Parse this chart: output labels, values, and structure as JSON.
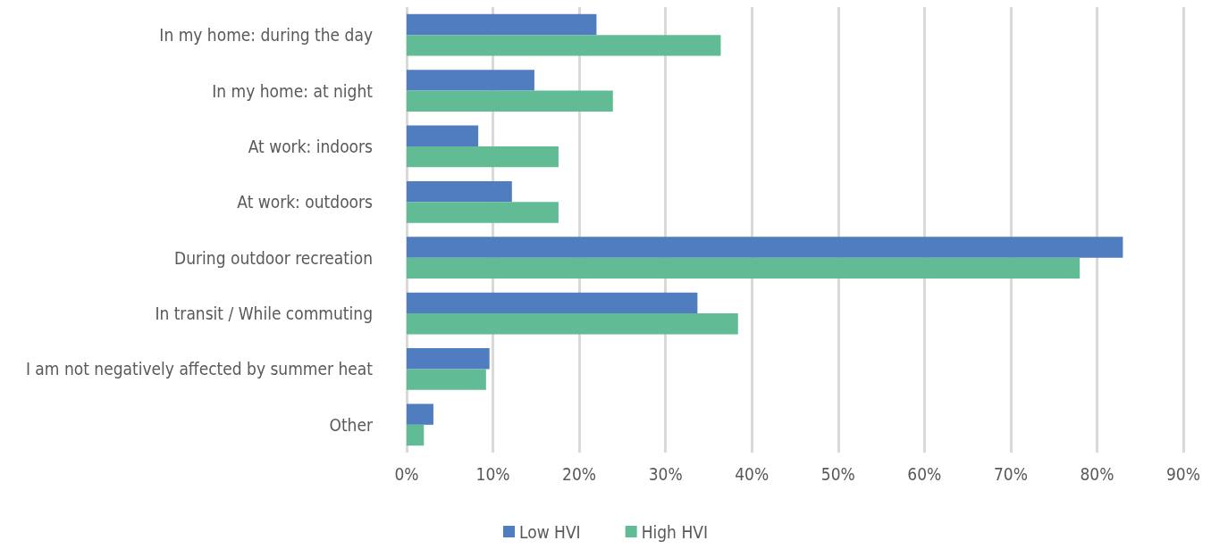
{
  "chart_data": {
    "type": "bar",
    "orientation": "horizontal",
    "categories": [
      "In my home: during the day",
      "In my home: at night",
      "At work: indoors",
      "At work: outdoors",
      "During outdoor recreation",
      "In transit / While commuting",
      "I am not negatively affected by summer heat",
      "Other"
    ],
    "series": [
      {
        "name": "Low HVI",
        "color": "#4f7dc0",
        "values": [
          22.0,
          14.8,
          8.3,
          12.2,
          83.0,
          33.7,
          9.6,
          3.1
        ]
      },
      {
        "name": "High HVI",
        "color": "#61bc96",
        "values": [
          36.4,
          23.9,
          17.6,
          17.6,
          78.0,
          38.4,
          9.2,
          2.0
        ]
      }
    ],
    "xlim": [
      0,
      90
    ],
    "xticks": [
      {
        "value": 0,
        "label": "0%"
      },
      {
        "value": 10,
        "label": "10%"
      },
      {
        "value": 20,
        "label": "20%"
      },
      {
        "value": 30,
        "label": "30%"
      },
      {
        "value": 40,
        "label": "40%"
      },
      {
        "value": 50,
        "label": "50%"
      },
      {
        "value": 60,
        "label": "60%"
      },
      {
        "value": 70,
        "label": "70%"
      },
      {
        "value": 80,
        "label": "80%"
      },
      {
        "value": 90,
        "label": "90%"
      }
    ],
    "grid": "x",
    "legend": "bottom"
  }
}
